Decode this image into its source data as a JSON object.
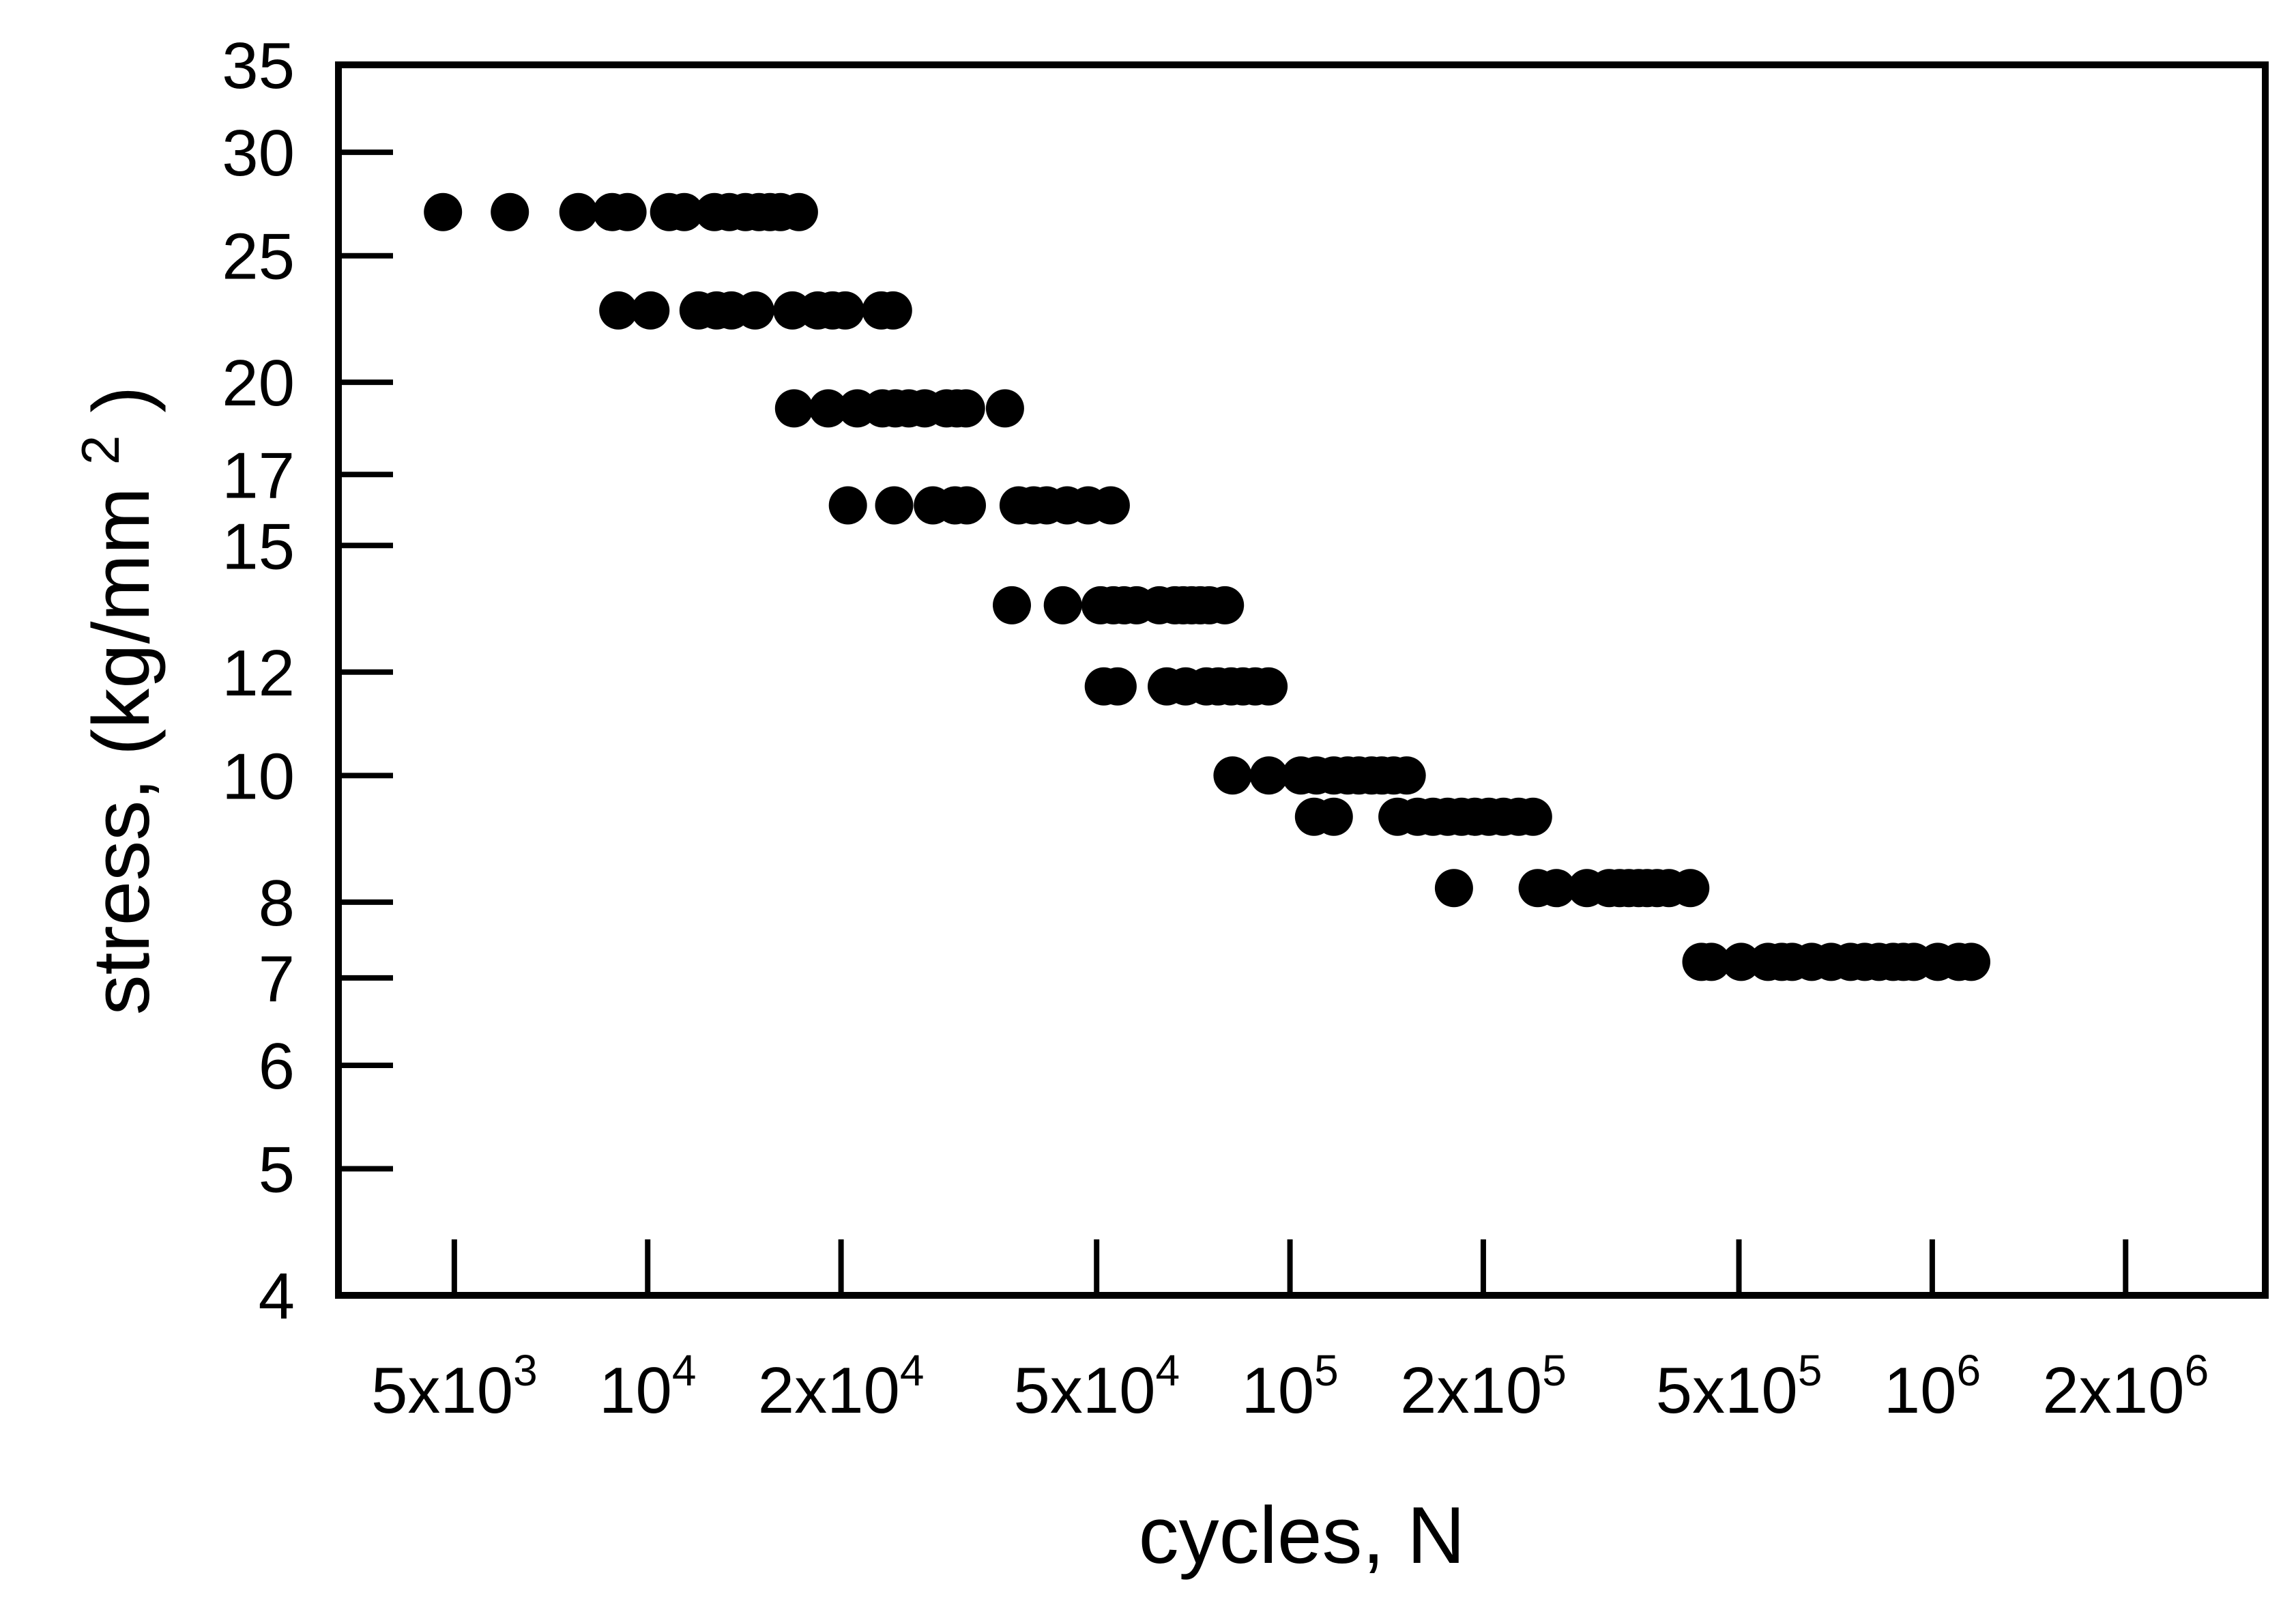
{
  "chart_data": {
    "type": "scatter",
    "title": "",
    "xlabel": "cycles, N",
    "ylabel_prefix": "stress, ",
    "ylabel_unit_open": " (kg/mm",
    "ylabel_unit_sup": "2",
    "ylabel_unit_close": ")",
    "x_scale": "log",
    "y_scale": "log",
    "xlim": [
      3300,
      3300000
    ],
    "ylim": [
      4,
      35
    ],
    "grid": false,
    "legend": "none",
    "marker_color": "#000000",
    "x_ticks": [
      {
        "value": 5000,
        "base": "5x10",
        "exp": "3"
      },
      {
        "value": 10000,
        "base": "10",
        "exp": "4"
      },
      {
        "value": 20000,
        "base": "2x10",
        "exp": "4"
      },
      {
        "value": 50000,
        "base": "5x10",
        "exp": "4"
      },
      {
        "value": 100000,
        "base": "10",
        "exp": "5"
      },
      {
        "value": 200000,
        "base": "2x10",
        "exp": "5"
      },
      {
        "value": 500000,
        "base": "5x10",
        "exp": "5"
      },
      {
        "value": 1000000,
        "base": "10",
        "exp": "6"
      },
      {
        "value": 2000000,
        "base": "2x10",
        "exp": "6"
      }
    ],
    "y_ticks": [
      {
        "value": 4,
        "label": "4"
      },
      {
        "value": 5,
        "label": "5"
      },
      {
        "value": 6,
        "label": "6"
      },
      {
        "value": 7,
        "label": "7"
      },
      {
        "value": 8,
        "label": "8"
      },
      {
        "value": 10,
        "label": "10"
      },
      {
        "value": 12,
        "label": "12"
      },
      {
        "value": 15,
        "label": "15"
      },
      {
        "value": 17,
        "label": "17"
      },
      {
        "value": 20,
        "label": "20"
      },
      {
        "value": 25,
        "label": "25"
      },
      {
        "value": 30,
        "label": "30"
      },
      {
        "value": 35,
        "label": "35"
      }
    ],
    "series": [
      {
        "points": [
          [
            4800,
            27
          ],
          [
            6100,
            27
          ],
          [
            7800,
            27
          ],
          [
            8800,
            27
          ],
          [
            9300,
            27
          ],
          [
            10800,
            27
          ],
          [
            11400,
            27
          ],
          [
            12700,
            27
          ],
          [
            13400,
            27
          ],
          [
            14200,
            27
          ],
          [
            14900,
            27
          ],
          [
            15500,
            27
          ],
          [
            16100,
            27
          ],
          [
            17200,
            27
          ],
          [
            9000,
            22.7
          ],
          [
            10100,
            22.7
          ],
          [
            12000,
            22.7
          ],
          [
            12800,
            22.7
          ],
          [
            13500,
            22.7
          ],
          [
            14700,
            22.7
          ],
          [
            16800,
            22.7
          ],
          [
            18400,
            22.7
          ],
          [
            19400,
            22.7
          ],
          [
            20300,
            22.7
          ],
          [
            23100,
            22.7
          ],
          [
            24100,
            22.7
          ],
          [
            16900,
            19.1
          ],
          [
            19100,
            19.1
          ],
          [
            21200,
            19.1
          ],
          [
            23200,
            19.1
          ],
          [
            24300,
            19.1
          ],
          [
            25500,
            19.1
          ],
          [
            27000,
            19.1
          ],
          [
            29200,
            19.1
          ],
          [
            30300,
            19.1
          ],
          [
            31300,
            19.1
          ],
          [
            36000,
            19.1
          ],
          [
            20500,
            16.1
          ],
          [
            24200,
            16.1
          ],
          [
            27800,
            16.1
          ],
          [
            30100,
            16.1
          ],
          [
            31400,
            16.1
          ],
          [
            37800,
            16.1
          ],
          [
            39900,
            16.1
          ],
          [
            41800,
            16.1
          ],
          [
            45000,
            16.1
          ],
          [
            48500,
            16.1
          ],
          [
            52600,
            16.1
          ],
          [
            36900,
            13.5
          ],
          [
            44300,
            13.5
          ],
          [
            50700,
            13.5
          ],
          [
            53100,
            13.5
          ],
          [
            55200,
            13.5
          ],
          [
            57700,
            13.5
          ],
          [
            62600,
            13.5
          ],
          [
            66200,
            13.5
          ],
          [
            68200,
            13.5
          ],
          [
            70300,
            13.5
          ],
          [
            72500,
            13.5
          ],
          [
            74900,
            13.5
          ],
          [
            79200,
            13.5
          ],
          [
            51300,
            11.7
          ],
          [
            53900,
            11.7
          ],
          [
            64300,
            11.7
          ],
          [
            68800,
            11.7
          ],
          [
            74100,
            11.7
          ],
          [
            77300,
            11.7
          ],
          [
            81000,
            11.7
          ],
          [
            84500,
            11.7
          ],
          [
            88300,
            11.7
          ],
          [
            92600,
            11.7
          ],
          [
            81400,
            10.0
          ],
          [
            92700,
            10.0
          ],
          [
            104000,
            10.0
          ],
          [
            110000,
            10.0
          ],
          [
            117000,
            10.0
          ],
          [
            123000,
            10.0
          ],
          [
            128000,
            10.0
          ],
          [
            134000,
            10.0
          ],
          [
            139000,
            10.0
          ],
          [
            145000,
            10.0
          ],
          [
            152000,
            10.0
          ],
          [
            109000,
            9.3
          ],
          [
            117000,
            9.3
          ],
          [
            147000,
            9.3
          ],
          [
            158000,
            9.3
          ],
          [
            167000,
            9.3
          ],
          [
            176000,
            9.3
          ],
          [
            185000,
            9.3
          ],
          [
            194000,
            9.3
          ],
          [
            204000,
            9.3
          ],
          [
            215000,
            9.3
          ],
          [
            227000,
            9.3
          ],
          [
            239000,
            9.3
          ],
          [
            180000,
            8.2
          ],
          [
            243000,
            8.2
          ],
          [
            260000,
            8.2
          ],
          [
            290000,
            8.2
          ],
          [
            314000,
            8.2
          ],
          [
            326000,
            8.2
          ],
          [
            337000,
            8.2
          ],
          [
            349000,
            8.2
          ],
          [
            360000,
            8.2
          ],
          [
            373000,
            8.2
          ],
          [
            389000,
            8.2
          ],
          [
            420000,
            8.2
          ],
          [
            437000,
            7.2
          ],
          [
            453000,
            7.2
          ],
          [
            504000,
            7.2
          ],
          [
            555000,
            7.2
          ],
          [
            583000,
            7.2
          ],
          [
            605000,
            7.2
          ],
          [
            649000,
            7.2
          ],
          [
            696000,
            7.2
          ],
          [
            746000,
            7.2
          ],
          [
            785000,
            7.2
          ],
          [
            826000,
            7.2
          ],
          [
            869000,
            7.2
          ],
          [
            902000,
            7.2
          ],
          [
            936000,
            7.2
          ],
          [
            1020000,
            7.2
          ],
          [
            1100000,
            7.2
          ],
          [
            1150000,
            7.2
          ]
        ]
      }
    ]
  }
}
